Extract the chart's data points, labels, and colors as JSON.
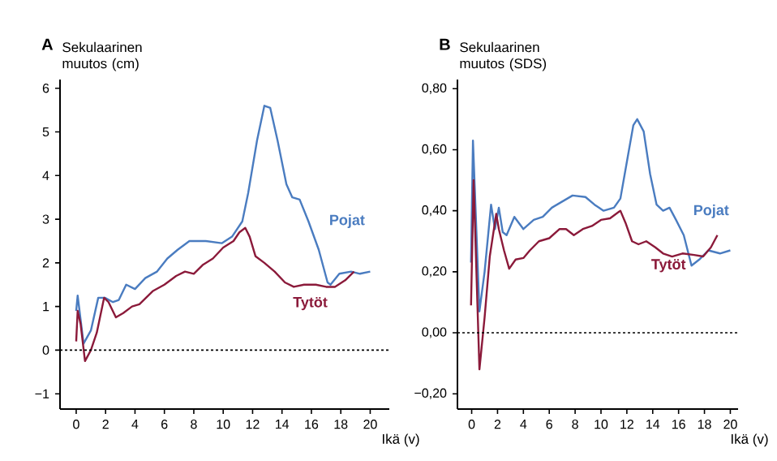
{
  "chart_data": [
    {
      "type": "line",
      "title": "A",
      "ylabel": "Sekulaarinen muutos (cm)",
      "xlabel": "Ikä (v)",
      "xlim": [
        -1.1,
        21.3
      ],
      "ylim": [
        -1.35,
        6.2
      ],
      "xticks": [
        0,
        2,
        4,
        6,
        8,
        10,
        12,
        14,
        16,
        18,
        20
      ],
      "yticks": [
        {
          "value": -1,
          "label": "−1"
        },
        0,
        1,
        2,
        3,
        4,
        5,
        6
      ],
      "legend": false,
      "grid": false,
      "marker": "none",
      "line_style": "solid",
      "ref_lines": [
        {
          "axis": "y",
          "value": 0,
          "color": "#000000",
          "line_style": "dashed"
        }
      ],
      "series": [
        {
          "name": "Pojat",
          "color": "#4a7cc0",
          "x": [
            0,
            0.1,
            0.5,
            1.0,
            1.5,
            1.95,
            2.5,
            2.9,
            3.4,
            4.0,
            4.7,
            5.5,
            6.2,
            6.9,
            7.7,
            8.8,
            9.9,
            10.6,
            11.3,
            11.7,
            12.3,
            12.8,
            13.2,
            13.7,
            14.3,
            14.7,
            15.2,
            15.8,
            16.5,
            17.1,
            17.3,
            17.9,
            18.7,
            19.3,
            20
          ],
          "values": [
            0.9,
            1.25,
            0.15,
            0.45,
            1.2,
            1.2,
            1.1,
            1.15,
            1.5,
            1.4,
            1.65,
            1.8,
            2.1,
            2.3,
            2.5,
            2.5,
            2.45,
            2.6,
            2.95,
            3.6,
            4.8,
            5.6,
            5.55,
            4.8,
            3.8,
            3.5,
            3.45,
            2.95,
            2.3,
            1.55,
            1.5,
            1.75,
            1.8,
            1.75,
            1.8
          ]
        },
        {
          "name": "Tytöt",
          "color": "#8b1a3a",
          "x": [
            0,
            0.1,
            0.3,
            0.6,
            1.0,
            1.4,
            1.9,
            2.2,
            2.7,
            3.2,
            3.8,
            4.3,
            5.2,
            6.0,
            6.8,
            7.4,
            8.0,
            8.6,
            9.3,
            10.0,
            10.7,
            11.1,
            11.5,
            11.8,
            12.2,
            12.8,
            13.5,
            14.2,
            14.8,
            15.5,
            16.3,
            17.0,
            17.6,
            18.3,
            18.9
          ],
          "values": [
            0.2,
            0.9,
            0.6,
            -0.25,
            0.0,
            0.4,
            1.2,
            1.1,
            0.75,
            0.85,
            1.0,
            1.05,
            1.35,
            1.5,
            1.7,
            1.8,
            1.75,
            1.95,
            2.1,
            2.35,
            2.5,
            2.7,
            2.8,
            2.6,
            2.15,
            2.0,
            1.8,
            1.55,
            1.45,
            1.5,
            1.5,
            1.45,
            1.45,
            1.6,
            1.8
          ]
        }
      ]
    },
    {
      "type": "line",
      "title": "B",
      "ylabel": "Sekulaarinen muutos (SDS)",
      "xlabel": "Ikä (v)",
      "xlim": [
        -1.1,
        20.6
      ],
      "ylim": [
        -0.25,
        0.83
      ],
      "xticks": [
        0,
        2,
        4,
        6,
        8,
        10,
        12,
        14,
        16,
        18,
        20
      ],
      "yticks": [
        {
          "value": -0.2,
          "label": "−0,20"
        },
        {
          "value": 0,
          "label": "0,00"
        },
        {
          "value": 0.2,
          "label": "0,20"
        },
        {
          "value": 0.4,
          "label": "0,40"
        },
        {
          "value": 0.6,
          "label": "0,60"
        },
        {
          "value": 0.8,
          "label": "0,80"
        }
      ],
      "legend": false,
      "grid": false,
      "marker": "none",
      "line_style": "solid",
      "ref_lines": [
        {
          "axis": "y",
          "value": 0,
          "color": "#000000",
          "line_style": "dashed"
        }
      ],
      "series": [
        {
          "name": "Pojat",
          "color": "#4a7cc0",
          "x": [
            -0.05,
            0.1,
            0.6,
            1.0,
            1.5,
            1.8,
            2.1,
            2.4,
            2.7,
            3.3,
            4.0,
            4.8,
            5.5,
            6.2,
            7.0,
            7.8,
            8.8,
            9.5,
            10.2,
            11.0,
            11.5,
            12.0,
            12.5,
            12.8,
            13.3,
            13.8,
            14.3,
            14.8,
            15.3,
            15.8,
            16.4,
            17.0,
            17.6,
            18.3,
            19.2,
            20
          ],
          "values": [
            0.23,
            0.63,
            0.07,
            0.2,
            0.42,
            0.34,
            0.41,
            0.33,
            0.32,
            0.38,
            0.34,
            0.37,
            0.38,
            0.41,
            0.43,
            0.45,
            0.445,
            0.42,
            0.4,
            0.41,
            0.44,
            0.56,
            0.68,
            0.7,
            0.66,
            0.52,
            0.42,
            0.4,
            0.41,
            0.37,
            0.32,
            0.22,
            0.24,
            0.27,
            0.26,
            0.27
          ]
        },
        {
          "name": "Tytöt",
          "color": "#8b1a3a",
          "x": [
            -0.05,
            0.15,
            0.6,
            1.0,
            1.4,
            1.9,
            2.1,
            2.5,
            2.9,
            3.4,
            4.0,
            4.5,
            5.2,
            6.0,
            6.8,
            7.3,
            7.9,
            8.6,
            9.3,
            10.0,
            10.7,
            11.5,
            11.9,
            12.4,
            12.9,
            13.5,
            14.2,
            14.8,
            15.5,
            16.3,
            17.2,
            17.9,
            18.5,
            19.0
          ],
          "values": [
            0.09,
            0.5,
            -0.12,
            0.05,
            0.25,
            0.39,
            0.34,
            0.27,
            0.21,
            0.24,
            0.245,
            0.27,
            0.3,
            0.31,
            0.34,
            0.34,
            0.32,
            0.34,
            0.35,
            0.37,
            0.375,
            0.4,
            0.36,
            0.3,
            0.29,
            0.3,
            0.28,
            0.26,
            0.25,
            0.26,
            0.255,
            0.25,
            0.28,
            0.32
          ]
        }
      ]
    }
  ]
}
